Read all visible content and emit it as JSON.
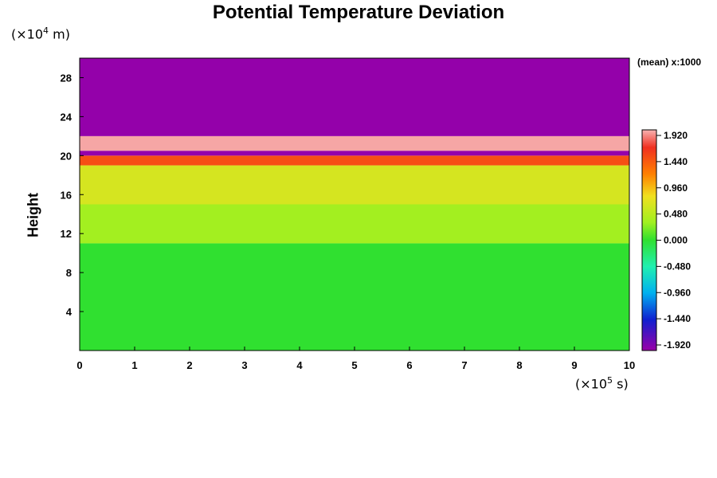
{
  "chart_data": {
    "type": "heatmap",
    "title": "Potential Temperature Deviation",
    "ylabel": "Height",
    "y_unit": {
      "prefix": "(×10",
      "exp": "4",
      "suffix": " m)"
    },
    "x_unit": {
      "prefix": "(×10",
      "exp": "5",
      "suffix": " s)"
    },
    "annotation": "(mean) x:1000",
    "xlim": [
      0,
      10
    ],
    "ylim": [
      0,
      30
    ],
    "x_ticks": [
      "0",
      "1",
      "2",
      "3",
      "4",
      "5",
      "6",
      "7",
      "8",
      "9",
      "10"
    ],
    "y_ticks": [
      "4",
      "8",
      "12",
      "16",
      "20",
      "24",
      "28"
    ],
    "colorbar": {
      "range": [
        -1.92,
        1.92
      ],
      "tick_labels": [
        "1.920",
        "1.440",
        "0.960",
        "0.480",
        "0.000",
        "-0.480",
        "-0.960",
        "-1.440",
        "-1.920"
      ]
    },
    "field_layers": [
      {
        "y_range": [
          0,
          11
        ],
        "value": 0.0
      },
      {
        "y_range": [
          11,
          15
        ],
        "value": 0.5
      },
      {
        "y_range": [
          15,
          19
        ],
        "value": 0.8
      },
      {
        "y_range": [
          19,
          20
        ],
        "value": 1.6
      },
      {
        "y_range": [
          20,
          20.5
        ],
        "value": -1.9
      },
      {
        "y_range": [
          20.5,
          22
        ],
        "value": 1.9
      },
      {
        "y_range": [
          22,
          30
        ],
        "value": -1.9
      }
    ]
  }
}
